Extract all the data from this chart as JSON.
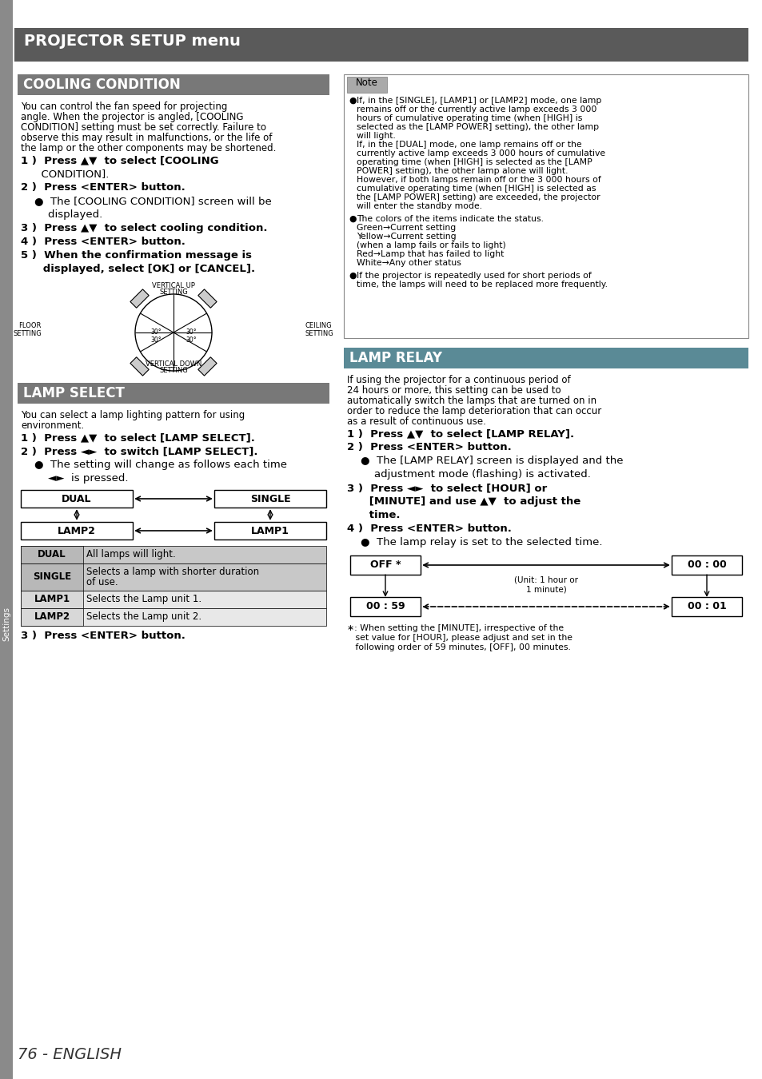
{
  "page_bg": "#ffffff",
  "header_bg": "#5a5a5a",
  "header_text": "PROJECTOR SETUP menu",
  "header_text_color": "#ffffff",
  "cooling_section_bg": "#787878",
  "lamp_select_section_bg": "#787878",
  "lamp_relay_section_bg": "#5a8a96",
  "section_text_color": "#ffffff",
  "footer_text": "76 - ENGLISH",
  "sidebar_text": "Settings",
  "sidebar_bg": "#888888",
  "cooling_title": "COOLING CONDITION",
  "cooling_intro_lines": [
    "You can control the fan speed for projecting",
    "angle. When the projector is angled, [COOLING",
    "CONDITION] setting must be set correctly. Failure to",
    "observe this may result in malfunctions, or the life of",
    "the lamp or the other components may be shortened."
  ],
  "lamp_select_title": "LAMP SELECT",
  "lamp_select_intro_lines": [
    "You can select a lamp lighting pattern for using",
    "environment."
  ],
  "table_rows": [
    [
      "DUAL",
      "All lamps will light."
    ],
    [
      "SINGLE",
      "Selects a lamp with shorter duration",
      "of use."
    ],
    [
      "LAMP1",
      "Selects the Lamp unit 1."
    ],
    [
      "LAMP2",
      "Selects the Lamp unit 2."
    ]
  ],
  "note_title": "Note",
  "note_bullet1_lines": [
    "If, in the [SINGLE], [LAMP1] or [LAMP2] mode, one lamp",
    "remains off or the currently active lamp exceeds 3 000",
    "hours of cumulative operating time (when [HIGH] is",
    "selected as the [LAMP POWER] setting), the other lamp",
    "will light.",
    "If, in the [DUAL] mode, one lamp remains off or the",
    "currently active lamp exceeds 3 000 hours of cumulative",
    "operating time (when [HIGH] is selected as the [LAMP",
    "POWER] setting), the other lamp alone will light.",
    "However, if both lamps remain off or the 3 000 hours of",
    "cumulative operating time (when [HIGH] is selected as",
    "the [LAMP POWER] setting) are exceeded, the projector",
    "will enter the standby mode."
  ],
  "note_bullet2_lines": [
    "The colors of the items indicate the status.",
    "Green→Current setting",
    "Yellow→Current setting",
    "(when a lamp fails or fails to light)",
    "Red→Lamp that has failed to light",
    "White→Any other status"
  ],
  "note_bullet3_lines": [
    "If the projector is repeatedly used for short periods of",
    "time, the lamps will need to be replaced more frequently."
  ],
  "lamp_relay_title": "LAMP RELAY",
  "lamp_relay_intro_lines": [
    "If using the projector for a continuous period of",
    "24 hours or more, this setting can be used to",
    "automatically switch the lamps that are turned on in",
    "order to reduce the lamp deterioration that can occur",
    "as a result of continuous use."
  ],
  "asterisk_note_lines": [
    "∗: When setting the [MINUTE], irrespective of the",
    "   set value for [HOUR], please adjust and set in the",
    "   following order of 59 minutes, [OFF], 00 minutes."
  ]
}
